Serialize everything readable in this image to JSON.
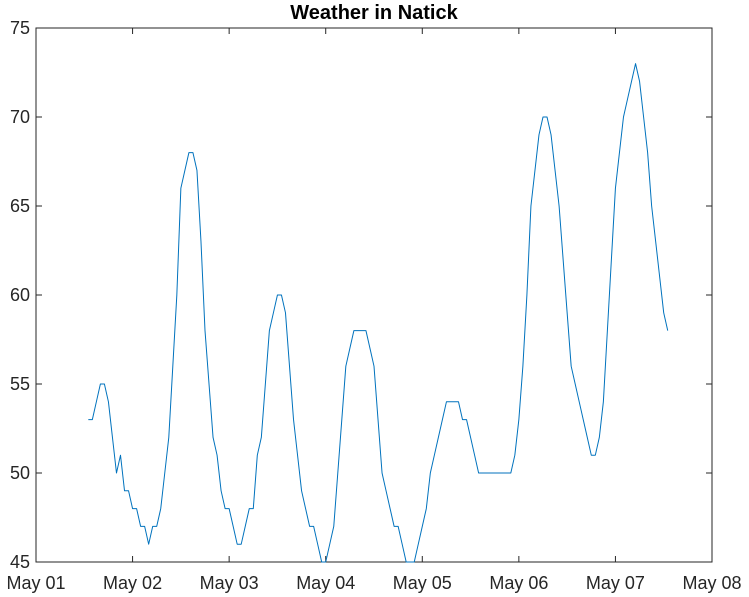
{
  "chart_data": {
    "type": "line",
    "title": "Weather in Natick",
    "xlabel": "",
    "ylabel": "",
    "xlim": [
      "May 01",
      "May 08"
    ],
    "ylim": [
      45,
      75
    ],
    "x_ticks": [
      "May 01",
      "May 02",
      "May 03",
      "May 04",
      "May 05",
      "May 06",
      "May 07",
      "May 08"
    ],
    "y_ticks": [
      45,
      50,
      55,
      60,
      65,
      70,
      75
    ],
    "grid": false,
    "line_color": "#0072BD",
    "series": [
      {
        "points": [
          [
            "May 01 13:00",
            53
          ],
          [
            "May 01 14:00",
            53
          ],
          [
            "May 01 15:00",
            54
          ],
          [
            "May 01 16:00",
            55
          ],
          [
            "May 01 17:00",
            55
          ],
          [
            "May 01 18:00",
            54
          ],
          [
            "May 01 19:00",
            52
          ],
          [
            "May 01 20:00",
            50
          ],
          [
            "May 01 21:00",
            51
          ],
          [
            "May 01 22:00",
            49
          ],
          [
            "May 01 23:00",
            49
          ],
          [
            "May 02 00:00",
            48
          ],
          [
            "May 02 01:00",
            48
          ],
          [
            "May 02 02:00",
            47
          ],
          [
            "May 02 03:00",
            47
          ],
          [
            "May 02 04:00",
            46
          ],
          [
            "May 02 05:00",
            47
          ],
          [
            "May 02 06:00",
            47
          ],
          [
            "May 02 07:00",
            48
          ],
          [
            "May 02 08:00",
            50
          ],
          [
            "May 02 09:00",
            52
          ],
          [
            "May 02 10:00",
            56
          ],
          [
            "May 02 11:00",
            60
          ],
          [
            "May 02 12:00",
            66
          ],
          [
            "May 02 13:00",
            67
          ],
          [
            "May 02 14:00",
            68
          ],
          [
            "May 02 15:00",
            68
          ],
          [
            "May 02 16:00",
            67
          ],
          [
            "May 02 17:00",
            63
          ],
          [
            "May 02 18:00",
            58
          ],
          [
            "May 02 19:00",
            55
          ],
          [
            "May 02 20:00",
            52
          ],
          [
            "May 02 21:00",
            51
          ],
          [
            "May 02 22:00",
            49
          ],
          [
            "May 02 23:00",
            48
          ],
          [
            "May 03 00:00",
            48
          ],
          [
            "May 03 01:00",
            47
          ],
          [
            "May 03 02:00",
            46
          ],
          [
            "May 03 03:00",
            46
          ],
          [
            "May 03 04:00",
            47
          ],
          [
            "May 03 05:00",
            48
          ],
          [
            "May 03 06:00",
            48
          ],
          [
            "May 03 07:00",
            51
          ],
          [
            "May 03 08:00",
            52
          ],
          [
            "May 03 09:00",
            55
          ],
          [
            "May 03 10:00",
            58
          ],
          [
            "May 03 11:00",
            59
          ],
          [
            "May 03 12:00",
            60
          ],
          [
            "May 03 13:00",
            60
          ],
          [
            "May 03 14:00",
            59
          ],
          [
            "May 03 15:00",
            56
          ],
          [
            "May 03 16:00",
            53
          ],
          [
            "May 03 17:00",
            51
          ],
          [
            "May 03 18:00",
            49
          ],
          [
            "May 03 19:00",
            48
          ],
          [
            "May 03 20:00",
            47
          ],
          [
            "May 03 21:00",
            47
          ],
          [
            "May 03 22:00",
            46
          ],
          [
            "May 03 23:00",
            45
          ],
          [
            "May 04 00:00",
            45
          ],
          [
            "May 04 01:00",
            46
          ],
          [
            "May 04 02:00",
            47
          ],
          [
            "May 04 03:00",
            50
          ],
          [
            "May 04 04:00",
            53
          ],
          [
            "May 04 05:00",
            56
          ],
          [
            "May 04 06:00",
            57
          ],
          [
            "May 04 07:00",
            58
          ],
          [
            "May 04 08:00",
            58
          ],
          [
            "May 04 09:00",
            58
          ],
          [
            "May 04 10:00",
            58
          ],
          [
            "May 04 11:00",
            57
          ],
          [
            "May 04 12:00",
            56
          ],
          [
            "May 04 13:00",
            53
          ],
          [
            "May 04 14:00",
            50
          ],
          [
            "May 04 15:00",
            49
          ],
          [
            "May 04 16:00",
            48
          ],
          [
            "May 04 17:00",
            47
          ],
          [
            "May 04 18:00",
            47
          ],
          [
            "May 04 19:00",
            46
          ],
          [
            "May 04 20:00",
            45
          ],
          [
            "May 04 21:00",
            45
          ],
          [
            "May 04 22:00",
            45
          ],
          [
            "May 04 23:00",
            46
          ],
          [
            "May 05 00:00",
            47
          ],
          [
            "May 05 01:00",
            48
          ],
          [
            "May 05 02:00",
            50
          ],
          [
            "May 05 03:00",
            51
          ],
          [
            "May 05 04:00",
            52
          ],
          [
            "May 05 05:00",
            53
          ],
          [
            "May 05 06:00",
            54
          ],
          [
            "May 05 07:00",
            54
          ],
          [
            "May 05 08:00",
            54
          ],
          [
            "May 05 09:00",
            54
          ],
          [
            "May 05 10:00",
            53
          ],
          [
            "May 05 11:00",
            53
          ],
          [
            "May 05 12:00",
            52
          ],
          [
            "May 05 13:00",
            51
          ],
          [
            "May 05 14:00",
            50
          ],
          [
            "May 05 15:00",
            50
          ],
          [
            "May 05 16:00",
            50
          ],
          [
            "May 05 17:00",
            50
          ],
          [
            "May 05 18:00",
            50
          ],
          [
            "May 05 19:00",
            50
          ],
          [
            "May 05 20:00",
            50
          ],
          [
            "May 05 21:00",
            50
          ],
          [
            "May 05 22:00",
            50
          ],
          [
            "May 05 23:00",
            51
          ],
          [
            "May 06 00:00",
            53
          ],
          [
            "May 06 01:00",
            56
          ],
          [
            "May 06 02:00",
            60
          ],
          [
            "May 06 03:00",
            65
          ],
          [
            "May 06 04:00",
            67
          ],
          [
            "May 06 05:00",
            69
          ],
          [
            "May 06 06:00",
            70
          ],
          [
            "May 06 07:00",
            70
          ],
          [
            "May 06 08:00",
            69
          ],
          [
            "May 06 09:00",
            67
          ],
          [
            "May 06 10:00",
            65
          ],
          [
            "May 06 11:00",
            62
          ],
          [
            "May 06 12:00",
            59
          ],
          [
            "May 06 13:00",
            56
          ],
          [
            "May 06 14:00",
            55
          ],
          [
            "May 06 15:00",
            54
          ],
          [
            "May 06 16:00",
            53
          ],
          [
            "May 06 17:00",
            52
          ],
          [
            "May 06 18:00",
            51
          ],
          [
            "May 06 19:00",
            51
          ],
          [
            "May 06 20:00",
            52
          ],
          [
            "May 06 21:00",
            54
          ],
          [
            "May 06 22:00",
            58
          ],
          [
            "May 06 23:00",
            62
          ],
          [
            "May 07 00:00",
            66
          ],
          [
            "May 07 01:00",
            68
          ],
          [
            "May 07 02:00",
            70
          ],
          [
            "May 07 03:00",
            71
          ],
          [
            "May 07 04:00",
            72
          ],
          [
            "May 07 05:00",
            73
          ],
          [
            "May 07 06:00",
            72
          ],
          [
            "May 07 07:00",
            70
          ],
          [
            "May 07 08:00",
            68
          ],
          [
            "May 07 09:00",
            65
          ],
          [
            "May 07 10:00",
            63
          ],
          [
            "May 07 11:00",
            61
          ],
          [
            "May 07 12:00",
            59
          ],
          [
            "May 07 13:00",
            58
          ]
        ]
      }
    ]
  }
}
